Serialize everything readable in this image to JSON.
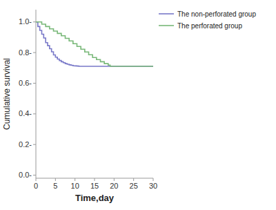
{
  "chart_data": {
    "type": "step",
    "xlabel": "Time,day",
    "ylabel": "Cumulative survival",
    "xlim": [
      0,
      30
    ],
    "ylim": [
      -0.02,
      1.08
    ],
    "xticks": [
      0,
      5,
      10,
      15,
      20,
      25,
      30
    ],
    "yticks": [
      {
        "value": 0.0,
        "label": "0.0-"
      },
      {
        "value": 0.2,
        "label": "0.2-"
      },
      {
        "value": 0.4,
        "label": "0.4-"
      },
      {
        "value": 0.6,
        "label": "0.6-"
      },
      {
        "value": 0.8,
        "label": "0.8-"
      },
      {
        "value": 1.0,
        "label": "1.0-"
      }
    ],
    "grid": false,
    "legend": "right",
    "series": [
      {
        "name": "The non-perforated group",
        "color": "#7878c8",
        "x": [
          0,
          0.5,
          1.0,
          1.5,
          2.0,
          2.5,
          3.0,
          3.5,
          4.0,
          4.5,
          5.0,
          5.5,
          6.0,
          6.5,
          7.0,
          7.5,
          8.0,
          8.5,
          9.0,
          9.5,
          10.0,
          10.5,
          11.0,
          30.0
        ],
        "values": [
          1.0,
          0.97,
          0.945,
          0.92,
          0.895,
          0.865,
          0.845,
          0.825,
          0.805,
          0.785,
          0.77,
          0.758,
          0.748,
          0.74,
          0.734,
          0.728,
          0.724,
          0.72,
          0.717,
          0.714,
          0.713,
          0.712,
          0.71,
          0.71
        ]
      },
      {
        "name": "The perforated group",
        "color": "#78b878",
        "x": [
          0,
          1.5,
          2.5,
          3.5,
          4.5,
          5.5,
          6.5,
          7.5,
          8.5,
          9.5,
          10.5,
          11.5,
          12.5,
          13.5,
          14.5,
          15.5,
          16.5,
          17.5,
          18.5,
          19.0,
          30.0
        ],
        "values": [
          1.0,
          0.985,
          0.97,
          0.955,
          0.94,
          0.925,
          0.91,
          0.893,
          0.876,
          0.858,
          0.84,
          0.822,
          0.804,
          0.786,
          0.768,
          0.754,
          0.74,
          0.728,
          0.718,
          0.71,
          0.71
        ]
      }
    ]
  }
}
